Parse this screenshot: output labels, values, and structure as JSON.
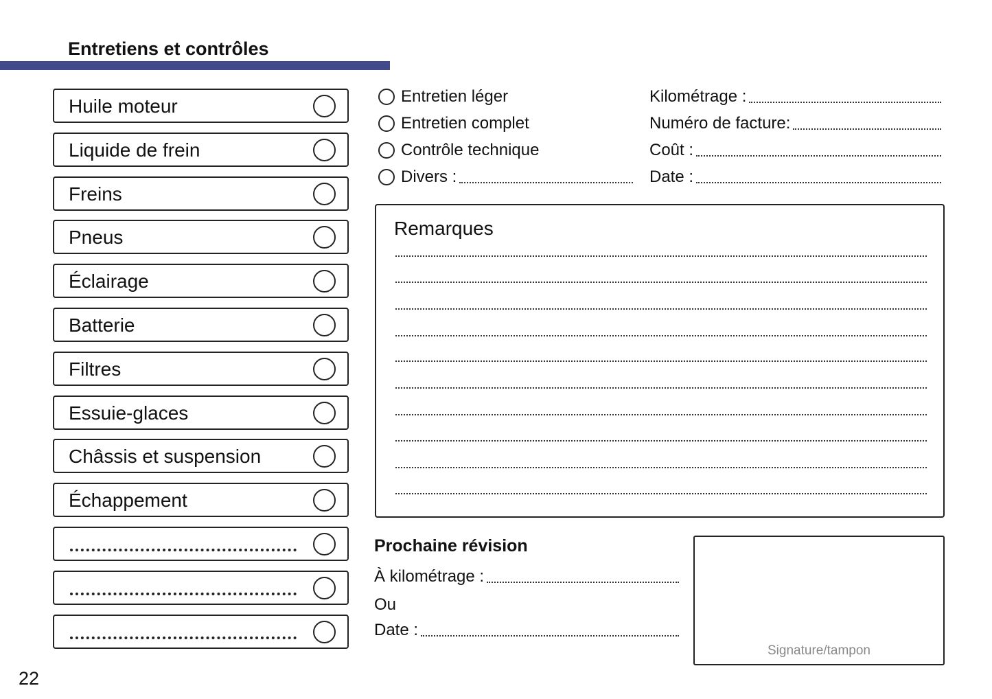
{
  "header": {
    "title": "Entretiens et contrôles",
    "accent_color": "#434a8c"
  },
  "checklist": [
    {
      "label": "Huile moteur"
    },
    {
      "label": "Liquide de frein"
    },
    {
      "label": "Freins"
    },
    {
      "label": "Pneus"
    },
    {
      "label": "Éclairage"
    },
    {
      "label": "Batterie"
    },
    {
      "label": "Filtres"
    },
    {
      "label": "Essuie-glaces"
    },
    {
      "label": "Châssis et suspension"
    },
    {
      "label": "Échappement"
    },
    {
      "label": ""
    },
    {
      "label": ""
    },
    {
      "label": ""
    }
  ],
  "service_types": [
    {
      "label": "Entretien léger"
    },
    {
      "label": "Entretien complet"
    },
    {
      "label": "Contrôle technique"
    },
    {
      "label": "Divers :"
    }
  ],
  "fields": [
    {
      "label": "Kilométrage :"
    },
    {
      "label": "Numéro de facture:"
    },
    {
      "label": "Coût :"
    },
    {
      "label": "Date :"
    }
  ],
  "remarks": {
    "title": "Remarques"
  },
  "next_service": {
    "title": "Prochaine révision",
    "mileage_label": "À kilométrage :",
    "or_label": "Ou",
    "date_label": "Date :"
  },
  "signature": {
    "label": "Signature/tampon"
  },
  "page_number": "22"
}
